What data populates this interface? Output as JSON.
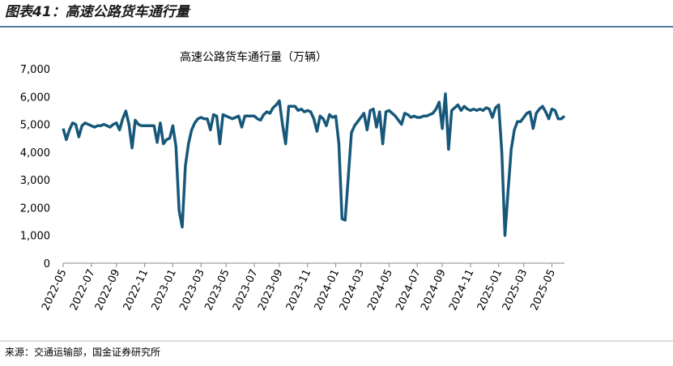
{
  "header": {
    "title": "图表41：高速公路货车通行量"
  },
  "footer": {
    "source": "来源：交通运输部，国金证券研究所"
  },
  "chart_data": {
    "type": "line",
    "title": "高速公路货车通行量（万辆）",
    "categories": [
      "2022-05",
      null,
      null,
      null,
      null,
      null,
      null,
      null,
      null,
      "2022-07",
      null,
      null,
      null,
      null,
      null,
      null,
      null,
      "2022-09",
      null,
      null,
      null,
      null,
      null,
      null,
      null,
      null,
      "2022-11",
      null,
      null,
      null,
      null,
      null,
      null,
      null,
      null,
      "2023-01",
      null,
      null,
      null,
      null,
      null,
      null,
      null,
      null,
      "2023-03",
      null,
      null,
      null,
      null,
      null,
      null,
      null,
      "2023-05",
      null,
      null,
      null,
      null,
      null,
      null,
      null,
      null,
      "2023-07",
      null,
      null,
      null,
      null,
      null,
      null,
      null,
      "2023-09",
      null,
      null,
      null,
      null,
      null,
      null,
      null,
      null,
      "2023-11",
      null,
      null,
      null,
      null,
      null,
      null,
      null,
      null,
      "2024-01",
      null,
      null,
      null,
      null,
      null,
      null,
      null,
      "2024-03",
      null,
      null,
      null,
      null,
      null,
      null,
      null,
      null,
      "2024-05",
      null,
      null,
      null,
      null,
      null,
      null,
      null,
      null,
      "2024-07",
      null,
      null,
      null,
      null,
      null,
      null,
      null,
      "2024-09",
      null,
      null,
      null,
      null,
      null,
      null,
      null,
      null,
      "2024-11",
      null,
      null,
      null,
      null,
      null,
      null,
      null,
      null,
      "2025-01",
      null,
      null,
      null,
      null,
      null,
      null,
      null,
      "2025-03",
      null,
      null,
      null,
      null,
      null,
      null,
      null,
      null,
      "2025-05",
      null,
      null,
      null,
      null
    ],
    "series": [
      {
        "name": "高速公路货车通行量",
        "color": "#17587a",
        "values": [
          4850,
          4450,
          4800,
          5050,
          5000,
          4550,
          4950,
          5050,
          5000,
          4950,
          4900,
          4950,
          4950,
          5000,
          4950,
          4900,
          5000,
          5050,
          4800,
          5200,
          5480,
          5000,
          4150,
          5150,
          5000,
          4950,
          4950,
          4950,
          4950,
          4950,
          4350,
          5050,
          4300,
          4450,
          4500,
          4950,
          4200,
          1900,
          1300,
          3500,
          4300,
          4800,
          5050,
          5200,
          5250,
          5200,
          5200,
          4800,
          5350,
          5300,
          4300,
          5350,
          5300,
          5250,
          5200,
          5250,
          5300,
          4900,
          5300,
          5300,
          5300,
          5300,
          5200,
          5150,
          5350,
          5450,
          5400,
          5600,
          5700,
          5850,
          5000,
          4300,
          5650,
          5650,
          5650,
          5500,
          5550,
          5450,
          5500,
          5450,
          5200,
          4750,
          5300,
          5200,
          4950,
          5350,
          5250,
          5300,
          4300,
          1600,
          1550,
          3100,
          4700,
          4950,
          5100,
          5250,
          5400,
          4800,
          5500,
          5550,
          4900,
          5450,
          4300,
          5450,
          5500,
          5400,
          5300,
          5150,
          5000,
          5400,
          5350,
          5250,
          5300,
          5250,
          5250,
          5300,
          5300,
          5350,
          5400,
          5550,
          5800,
          4850,
          6100,
          4100,
          5500,
          5600,
          5700,
          5500,
          5650,
          5550,
          5500,
          5550,
          5500,
          5550,
          5500,
          5600,
          5550,
          5250,
          5600,
          5700,
          4000,
          1000,
          2600,
          4100,
          4800,
          5100,
          5100,
          5250,
          5400,
          5450,
          4850,
          5400,
          5550,
          5650,
          5450,
          5200,
          5550,
          5500,
          5200,
          5200,
          5300
        ]
      }
    ],
    "ylim": [
      0,
      7000
    ],
    "yticks": [
      0,
      {
        "value": 1000,
        "label": "1,000"
      },
      {
        "value": 2000,
        "label": "2,000"
      },
      {
        "value": 3000,
        "label": "3,000"
      },
      {
        "value": 4000,
        "label": "4,000"
      },
      {
        "value": 5000,
        "label": "5,000"
      },
      {
        "value": 6000,
        "label": "6,000"
      },
      {
        "value": 7000,
        "label": "7,000"
      }
    ],
    "grid": false
  }
}
